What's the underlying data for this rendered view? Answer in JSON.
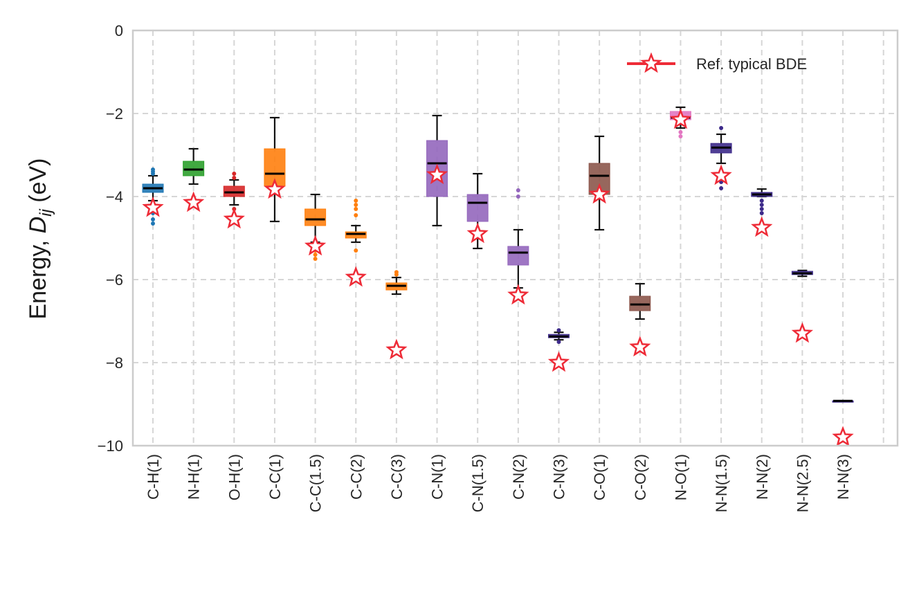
{
  "chart_data": {
    "type": "box",
    "ylabel_prefix": "Energy, ",
    "ylabel_symbol": "D",
    "ylabel_subscript": "ij",
    "ylabel_suffix": " (eV)",
    "ylim": [
      -10,
      0
    ],
    "yticks": [
      0,
      -2,
      -4,
      -6,
      -8,
      -10
    ],
    "ytick_labels": [
      "0",
      "−2",
      "−4",
      "−6",
      "−8",
      "−10"
    ],
    "grid": true,
    "legend_position": "top-right",
    "legend": {
      "label": "Ref. typical BDE",
      "color": "#ee2b37"
    },
    "categories": [
      "C-H(1)",
      "N-H(1)",
      "O-H(1)",
      "C-C(1)",
      "C-C(1.5)",
      "C-C(2)",
      "C-C(3)",
      "C-N(1)",
      "C-N(1.5)",
      "C-N(2)",
      "C-N(3)",
      "C-O(1)",
      "C-O(2)",
      "N-O(1)",
      "N-N(1.5)",
      "N-N(2)",
      "N-N(2.5)",
      "N-N(3)"
    ],
    "boxes": [
      {
        "color": "#1f77b4",
        "whislo": -4.1,
        "q1": -3.9,
        "med": -3.8,
        "q3": -3.7,
        "whishi": -3.5,
        "fliers": [
          -3.35,
          -3.4,
          -3.45,
          -4.2,
          -4.3,
          -4.4,
          -4.55,
          -4.65
        ]
      },
      {
        "color": "#2ca02c",
        "whislo": -3.7,
        "q1": -3.5,
        "med": -3.35,
        "q3": -3.15,
        "whishi": -2.85,
        "fliers": []
      },
      {
        "color": "#d62728",
        "whislo": -4.2,
        "q1": -4.0,
        "med": -3.9,
        "q3": -3.75,
        "whishi": -3.6,
        "fliers": [
          -3.45,
          -3.55,
          -4.3,
          -4.45
        ]
      },
      {
        "color": "#ff7f0e",
        "whislo": -4.6,
        "q1": -3.75,
        "med": -3.45,
        "q3": -2.85,
        "whishi": -2.1,
        "fliers": []
      },
      {
        "color": "#ff7f0e",
        "whislo": -5.1,
        "q1": -4.7,
        "med": -4.55,
        "q3": -4.3,
        "whishi": -3.95,
        "fliers": [
          -5.3,
          -5.4,
          -5.5
        ]
      },
      {
        "color": "#ff7f0e",
        "whislo": -5.1,
        "q1": -5.0,
        "med": -4.9,
        "q3": -4.85,
        "whishi": -4.7,
        "fliers": [
          -4.1,
          -4.2,
          -4.3,
          -4.45,
          -5.3
        ]
      },
      {
        "color": "#ff7f0e",
        "whislo": -6.35,
        "q1": -6.25,
        "med": -6.15,
        "q3": -6.08,
        "whishi": -5.95,
        "fliers": [
          -5.82,
          -5.88
        ]
      },
      {
        "color": "#9467bd",
        "whislo": -4.7,
        "q1": -4.0,
        "med": -3.2,
        "q3": -2.65,
        "whishi": -2.05,
        "fliers": []
      },
      {
        "color": "#9467bd",
        "whislo": -5.25,
        "q1": -4.6,
        "med": -4.15,
        "q3": -3.95,
        "whishi": -3.45,
        "fliers": []
      },
      {
        "color": "#9467bd",
        "whislo": -6.2,
        "q1": -5.65,
        "med": -5.35,
        "q3": -5.2,
        "whishi": -4.8,
        "fliers": [
          -3.85,
          -4.0
        ]
      },
      {
        "color": "#3d2a8a",
        "whislo": -7.45,
        "q1": -7.4,
        "med": -7.37,
        "q3": -7.32,
        "whishi": -7.27,
        "fliers": [
          -7.22,
          -7.5
        ]
      },
      {
        "color": "#8c564b",
        "whislo": -4.8,
        "q1": -3.95,
        "med": -3.5,
        "q3": -3.2,
        "whishi": -2.55,
        "fliers": []
      },
      {
        "color": "#8c564b",
        "whislo": -6.95,
        "q1": -6.75,
        "med": -6.6,
        "q3": -6.4,
        "whishi": -6.1,
        "fliers": []
      },
      {
        "color": "#e377c2",
        "whislo": -2.35,
        "q1": -2.15,
        "med": -2.1,
        "q3": -1.95,
        "whishi": -1.85,
        "fliers": [
          -2.45,
          -2.55
        ]
      },
      {
        "color": "#3d2a8a",
        "whislo": -3.2,
        "q1": -2.95,
        "med": -2.82,
        "q3": -2.72,
        "whishi": -2.5,
        "fliers": [
          -2.35,
          -3.5,
          -3.65,
          -3.8
        ]
      },
      {
        "color": "#3d2a8a",
        "whislo": -4.0,
        "q1": -4.0,
        "med": -3.95,
        "q3": -3.9,
        "whishi": -3.82,
        "fliers": [
          -4.1,
          -4.2,
          -4.3,
          -4.4
        ]
      },
      {
        "color": "#3d2a8a",
        "whislo": -5.92,
        "q1": -5.88,
        "med": -5.85,
        "q3": -5.8,
        "whishi": -5.78,
        "fliers": []
      },
      {
        "color": "#3d2a8a",
        "whislo": -8.92,
        "q1": -8.92,
        "med": -8.92,
        "q3": -8.92,
        "whishi": -8.92,
        "fliers": []
      }
    ],
    "reference_bde": [
      -4.27,
      -4.15,
      -4.55,
      -3.83,
      -5.2,
      -5.95,
      -7.7,
      -3.48,
      -4.9,
      -6.38,
      -8.0,
      -3.95,
      -7.63,
      -2.15,
      -3.5,
      -4.75,
      -7.3,
      -9.8
    ]
  }
}
